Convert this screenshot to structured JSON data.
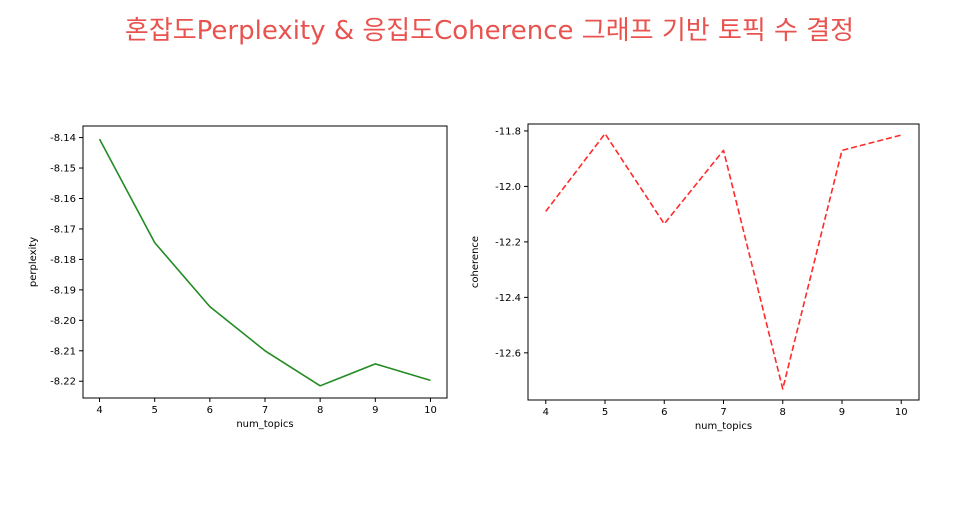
{
  "page_title": "혼잡도Perplexity & 응집도Coherence 그래프 기반 토픽 수 결정",
  "chart_data": [
    {
      "type": "line",
      "xlabel": "num_topics",
      "ylabel": "perplexity",
      "x": [
        4,
        5,
        6,
        7,
        8,
        9,
        10
      ],
      "series": [
        {
          "values": [
            -8.1405,
            -8.1745,
            -8.1955,
            -8.21,
            -8.2215,
            -8.2143,
            -8.2197
          ],
          "color": "#228b22",
          "style": "solid"
        }
      ],
      "xticks": [
        4,
        5,
        6,
        7,
        8,
        9,
        10
      ],
      "yticks": [
        -8.14,
        -8.15,
        -8.16,
        -8.17,
        -8.18,
        -8.19,
        -8.2,
        -8.21,
        -8.22
      ],
      "ytick_labels": [
        "-8.14",
        "-8.15",
        "-8.16",
        "-8.17",
        "-8.18",
        "-8.19",
        "-8.20",
        "-8.21",
        "-8.22"
      ],
      "xlim": [
        3.7,
        10.3
      ],
      "ylim": [
        -8.2255,
        -8.1362
      ],
      "grid": false
    },
    {
      "type": "line",
      "xlabel": "num_topics",
      "ylabel": "coherence",
      "x": [
        4,
        5,
        6,
        7,
        8,
        9,
        10
      ],
      "series": [
        {
          "values": [
            -12.09,
            -11.81,
            -12.135,
            -11.87,
            -12.73,
            -11.87,
            -11.815
          ],
          "color": "#ff2a2a",
          "style": "dashed"
        }
      ],
      "xticks": [
        4,
        5,
        6,
        7,
        8,
        9,
        10
      ],
      "yticks": [
        -11.8,
        -12.0,
        -12.2,
        -12.4,
        -12.6
      ],
      "ytick_labels": [
        "-11.8",
        "-12.0",
        "-12.2",
        "-12.4",
        "-12.6"
      ],
      "xlim": [
        3.7,
        10.3
      ],
      "ylim": [
        -12.77,
        -11.775
      ],
      "grid": false
    }
  ]
}
